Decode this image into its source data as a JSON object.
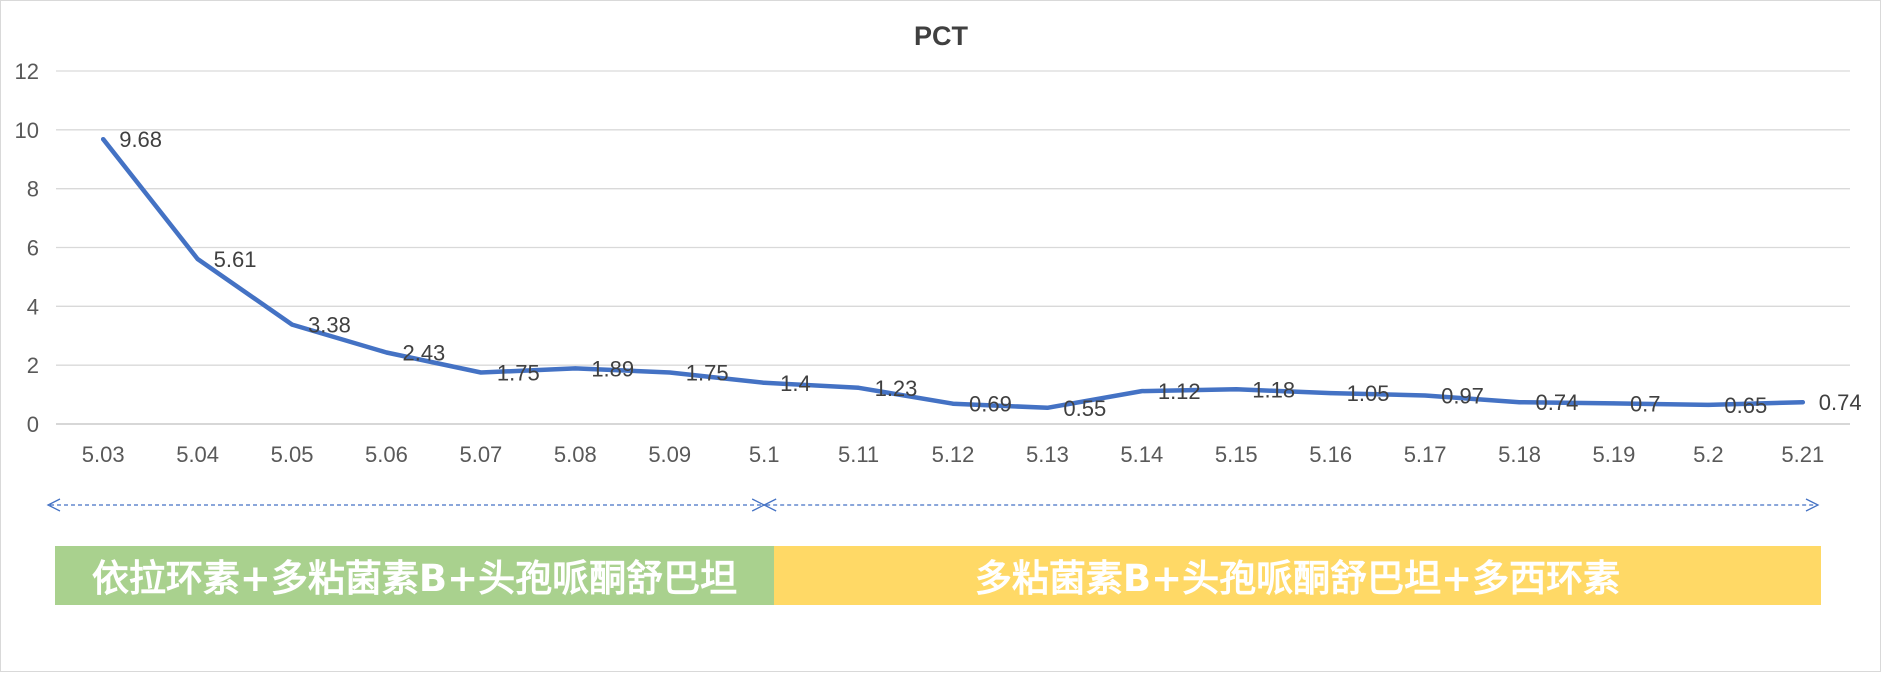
{
  "chart_data": {
    "type": "line",
    "title": "PCT",
    "xlabel": "",
    "ylabel": "",
    "categories": [
      "5.03",
      "5.04",
      "5.05",
      "5.06",
      "5.07",
      "5.08",
      "5.09",
      "5.1",
      "5.11",
      "5.12",
      "5.13",
      "5.14",
      "5.15",
      "5.16",
      "5.17",
      "5.18",
      "5.19",
      "5.2",
      "5.21"
    ],
    "series": [
      {
        "values": [
          9.68,
          5.61,
          3.38,
          2.43,
          1.75,
          1.89,
          1.75,
          1.4,
          1.23,
          0.69,
          0.55,
          1.12,
          1.18,
          1.05,
          0.97,
          0.74,
          0.7,
          0.65,
          0.74
        ],
        "color": "#4472c4"
      }
    ],
    "ylim": [
      0,
      12
    ],
    "yticks": [
      "0",
      "2",
      "4",
      "6",
      "8",
      "10",
      "12"
    ],
    "grid": true,
    "legend": "none"
  },
  "treatments": [
    {
      "label": "依拉环素+多粘菌素B+头孢哌酮舒巴坦",
      "start": "5.03",
      "end": "5.1",
      "color": "#a9d18e"
    },
    {
      "label": "多粘菌素B+头孢哌酮舒巴坦+多西环素",
      "start": "5.1",
      "end": "5.21",
      "color": "#ffd966"
    }
  ],
  "colors": {
    "gridline": "#d9d9d9",
    "arrow": "#4472c4",
    "axis": "#bfbfbf"
  }
}
